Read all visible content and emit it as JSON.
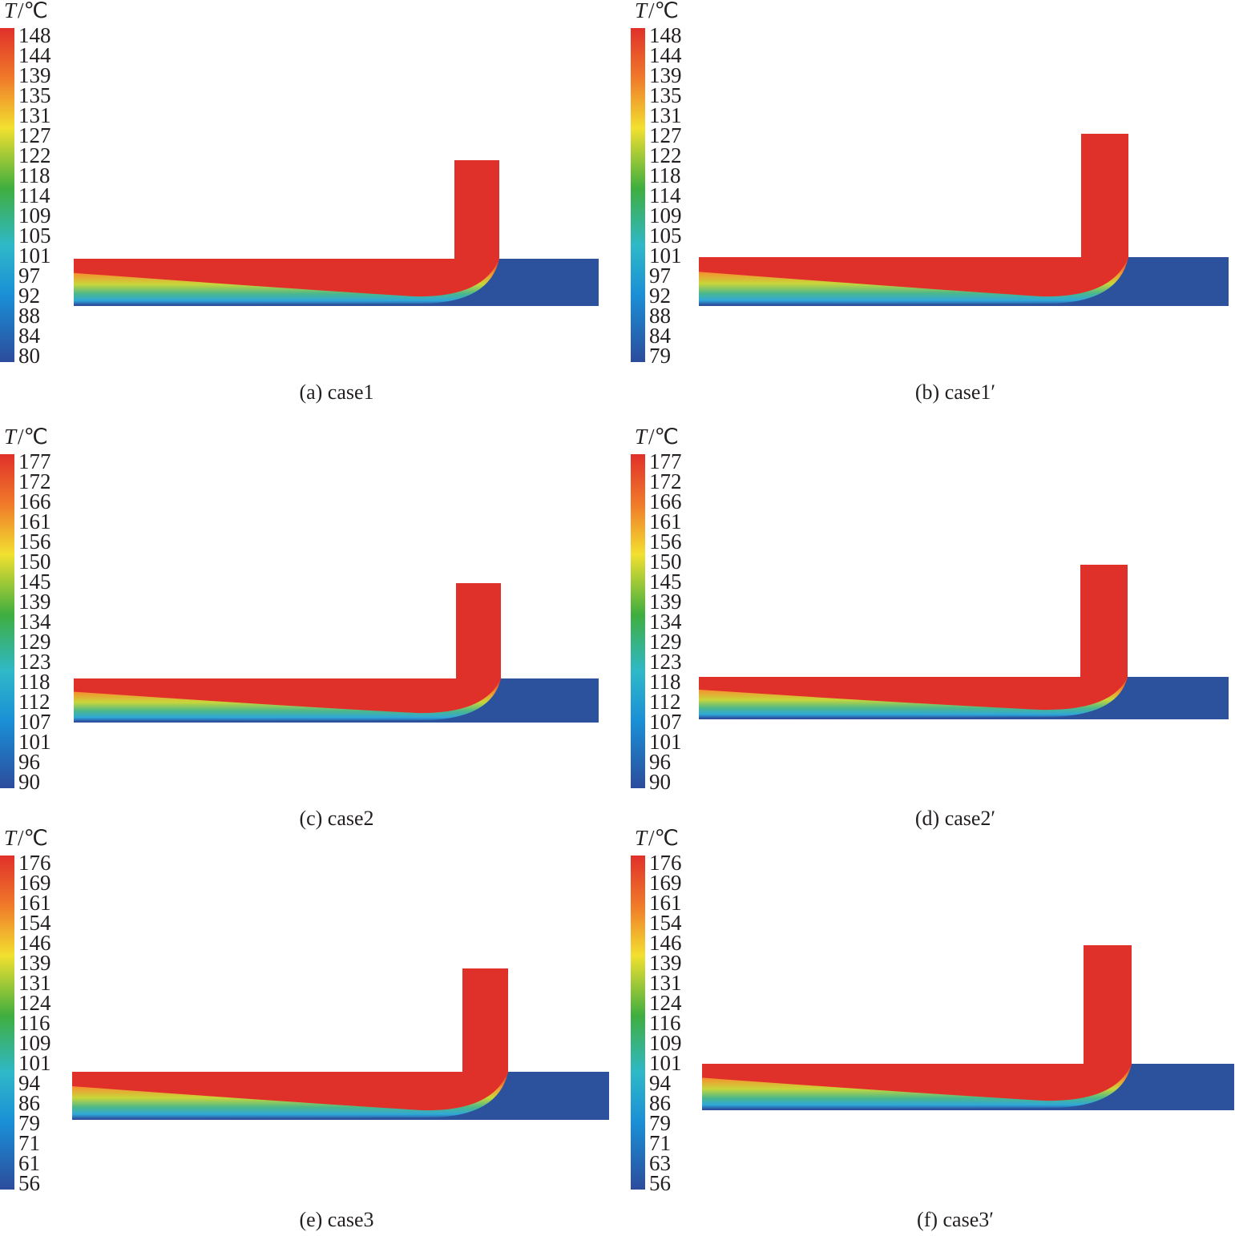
{
  "panels": [
    {
      "symbol": "T",
      "unit": "/℃",
      "scale": [
        "148",
        "144",
        "139",
        "135",
        "131",
        "127",
        "122",
        "118",
        "114",
        "109",
        "105",
        "101",
        "97",
        "92",
        "88",
        "84",
        "80"
      ],
      "caption": "(a) case1"
    },
    {
      "symbol": "T",
      "unit": "/℃",
      "scale": [
        "148",
        "144",
        "139",
        "135",
        "131",
        "127",
        "122",
        "118",
        "114",
        "109",
        "105",
        "101",
        "97",
        "92",
        "88",
        "84",
        "79"
      ],
      "caption": "(b) case1′"
    },
    {
      "symbol": "T",
      "unit": "/℃",
      "scale": [
        "177",
        "172",
        "166",
        "161",
        "156",
        "150",
        "145",
        "139",
        "134",
        "129",
        "123",
        "118",
        "112",
        "107",
        "101",
        "96",
        "90"
      ],
      "caption": "(c) case2"
    },
    {
      "symbol": "T",
      "unit": "/℃",
      "scale": [
        "177",
        "172",
        "166",
        "161",
        "156",
        "150",
        "145",
        "139",
        "134",
        "129",
        "123",
        "118",
        "112",
        "107",
        "101",
        "96",
        "90"
      ],
      "caption": "(d) case2′"
    },
    {
      "symbol": "T",
      "unit": "/℃",
      "scale": [
        "176",
        "169",
        "161",
        "154",
        "146",
        "139",
        "131",
        "124",
        "116",
        "109",
        "101",
        "94",
        "86",
        "79",
        "71",
        "61",
        "56"
      ],
      "caption": "(e) case3"
    },
    {
      "symbol": "T",
      "unit": "/℃",
      "scale": [
        "176",
        "169",
        "161",
        "154",
        "146",
        "139",
        "131",
        "124",
        "116",
        "109",
        "101",
        "94",
        "86",
        "79",
        "71",
        "63",
        "56"
      ],
      "caption": "(f) case3′"
    }
  ]
}
